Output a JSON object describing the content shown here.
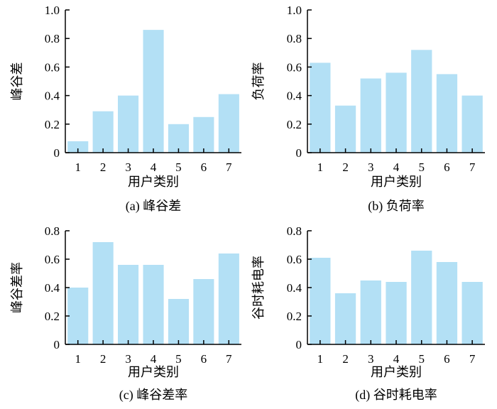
{
  "colors": {
    "bar": "#b3e0f5",
    "axis": "#000000"
  },
  "chart_data": [
    {
      "type": "bar",
      "categories": [
        "1",
        "2",
        "3",
        "4",
        "5",
        "6",
        "7"
      ],
      "values": [
        0.08,
        0.29,
        0.4,
        0.86,
        0.2,
        0.25,
        0.41
      ],
      "xlabel": "用户类别",
      "ylabel": "峰谷差",
      "caption": "(a)  峰谷差",
      "ylim": [
        0,
        1.0
      ],
      "yticks": [
        "0",
        "0.2",
        "0.4",
        "0.6",
        "0.8",
        "1.0"
      ],
      "grid": false
    },
    {
      "type": "bar",
      "categories": [
        "1",
        "2",
        "3",
        "4",
        "5",
        "6",
        "7"
      ],
      "values": [
        0.63,
        0.33,
        0.52,
        0.56,
        0.72,
        0.55,
        0.4
      ],
      "xlabel": "用户类别",
      "ylabel": "负荷率",
      "caption": "(b)  负荷率",
      "ylim": [
        0,
        1.0
      ],
      "yticks": [
        "0",
        "0.2",
        "0.4",
        "0.6",
        "0.8",
        "1.0"
      ],
      "grid": false
    },
    {
      "type": "bar",
      "categories": [
        "1",
        "2",
        "3",
        "4",
        "5",
        "6",
        "7"
      ],
      "values": [
        0.4,
        0.72,
        0.56,
        0.56,
        0.32,
        0.46,
        0.64
      ],
      "xlabel": "用户类别",
      "ylabel": "峰谷差率",
      "caption": "(c)  峰谷差率",
      "ylim": [
        0,
        0.8
      ],
      "yticks": [
        "0",
        "0.2",
        "0.4",
        "0.6",
        "0.8"
      ],
      "grid": false
    },
    {
      "type": "bar",
      "categories": [
        "1",
        "2",
        "3",
        "4",
        "5",
        "6",
        "7"
      ],
      "values": [
        0.61,
        0.36,
        0.45,
        0.44,
        0.66,
        0.58,
        0.44
      ],
      "xlabel": "用户类别",
      "ylabel": "谷时耗电率",
      "caption": "(d)  谷时耗电率",
      "ylim": [
        0,
        0.8
      ],
      "yticks": [
        "0",
        "0.2",
        "0.4",
        "0.6",
        "0.8"
      ],
      "grid": false
    }
  ]
}
